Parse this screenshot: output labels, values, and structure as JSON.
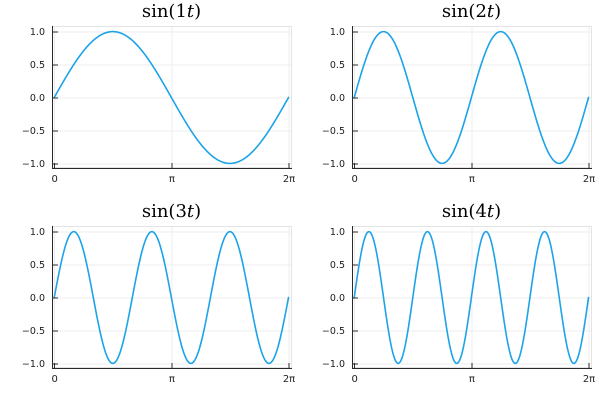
{
  "figure": {
    "background": "#ffffff",
    "rows": 2,
    "cols": 2
  },
  "chart_data": {
    "type": "line",
    "layout": "2x2-subplot-grid",
    "grid": true,
    "legend": "none",
    "x": {
      "domain": [
        0,
        6.283185307179586
      ],
      "range": [
        -0.06,
        6.35
      ],
      "ticks": [
        {
          "value": 0,
          "label": "0"
        },
        {
          "value": 3.141592653589793,
          "label": "π"
        },
        {
          "value": 6.283185307179586,
          "label": "2π"
        }
      ]
    },
    "y": {
      "range": [
        -1.07,
        1.07
      ],
      "ticks": [
        {
          "value": 1.0,
          "label": "1.0"
        },
        {
          "value": 0.5,
          "label": "0.5"
        },
        {
          "value": 0.0,
          "label": "0.0"
        },
        {
          "value": -0.5,
          "label": "−0.5"
        },
        {
          "value": -1.0,
          "label": "−1.0"
        }
      ]
    },
    "style": {
      "line_color": "#1CA3E8",
      "grid_color": "#ededed",
      "frame_light_color": "#e4e4e4",
      "spine_color": "#2a2a2a",
      "tick_label_color": "#1c1c1c",
      "title_color": "#000000"
    },
    "subplots": [
      {
        "label": "sin(1t)",
        "freq": 1,
        "amplitude": 1,
        "function": "y = sin(1t), t in [0, 2π]",
        "title_fn": "sin(",
        "title_freq": "1",
        "title_var": "t",
        "title_close": ")"
      },
      {
        "label": "sin(2t)",
        "freq": 2,
        "amplitude": 1,
        "function": "y = sin(2t), t in [0, 2π]",
        "title_fn": "sin(",
        "title_freq": "2",
        "title_var": "t",
        "title_close": ")"
      },
      {
        "label": "sin(3t)",
        "freq": 3,
        "amplitude": 1,
        "function": "y = sin(3t), t in [0, 2π]",
        "title_fn": "sin(",
        "title_freq": "3",
        "title_var": "t",
        "title_close": ")"
      },
      {
        "label": "sin(4t)",
        "freq": 4,
        "amplitude": 1,
        "function": "y = sin(4t), t in [0, 2π]",
        "title_fn": "sin(",
        "title_freq": "4",
        "title_var": "t",
        "title_close": ")"
      }
    ]
  }
}
